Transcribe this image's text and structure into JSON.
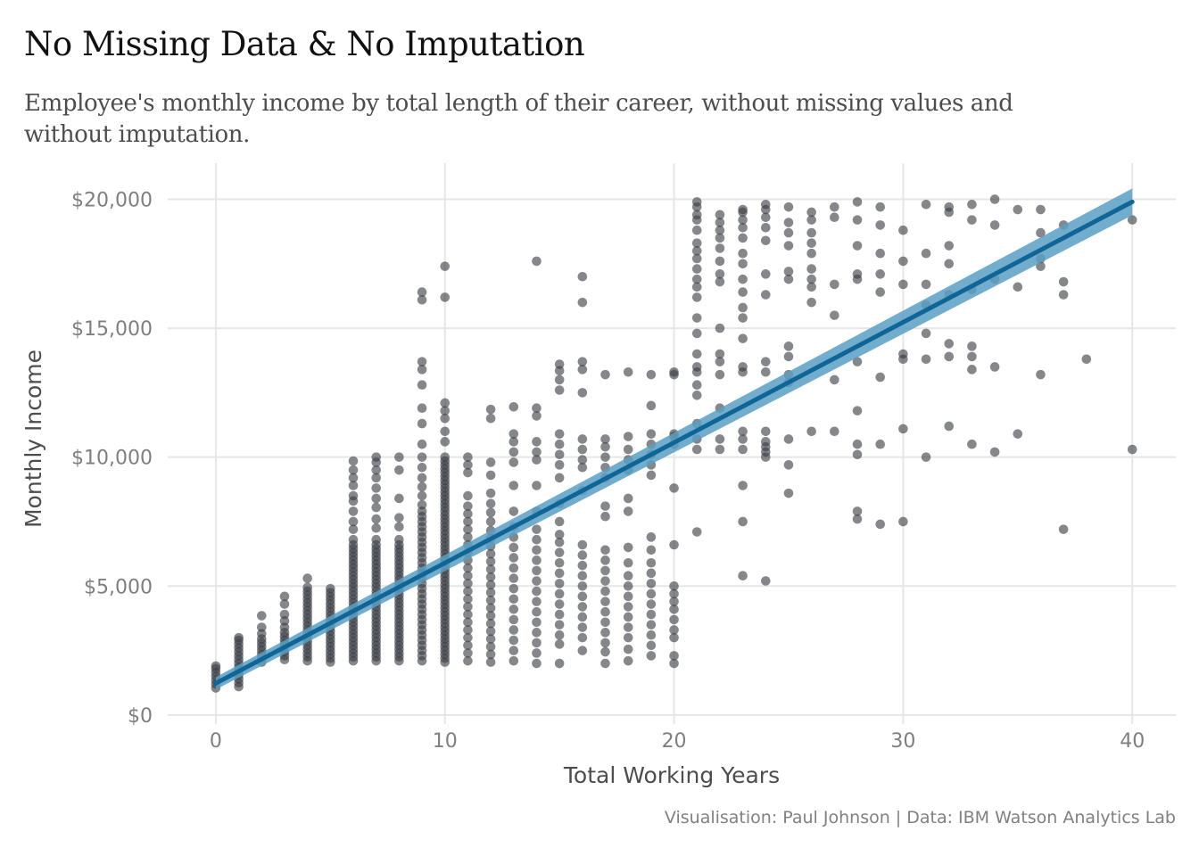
{
  "title": "No Missing Data & No Imputation",
  "subtitle": "Employee's monthly income by total length of their career, without missing values and without imputation.",
  "caption": "Visualisation: Paul Johnson  |  Data: IBM Watson Analytics Lab",
  "colors": {
    "points": "#3a3e43",
    "fit_line": "#0f6696",
    "ci_band": "#5b9fc4",
    "grid": "#e6e6e6"
  },
  "chart_data": {
    "type": "scatter",
    "xlabel": "Total Working Years",
    "ylabel": "Monthly Income",
    "xlim": [
      -2.1,
      41.9
    ],
    "ylim": [
      -350,
      21400
    ],
    "x_ticks": [
      0,
      10,
      20,
      30,
      40
    ],
    "x_tick_labels": [
      "0",
      "10",
      "20",
      "30",
      "40"
    ],
    "y_ticks": [
      0,
      5000,
      10000,
      15000,
      20000
    ],
    "y_tick_labels": [
      "$0",
      "$5,000",
      "$10,000",
      "$15,000",
      "$20,000"
    ],
    "grid": true,
    "legend": "none",
    "trend_line": {
      "method": "linear",
      "x": [
        0,
        40
      ],
      "y": [
        1230,
        19900
      ],
      "ci_halfwidth": [
        240,
        520
      ]
    },
    "point_columns": [
      {
        "x": 0,
        "y": [
          1050,
          1200,
          1350,
          1500,
          1650,
          1800,
          1900
        ]
      },
      {
        "x": 1,
        "y": [
          1100,
          1250,
          1400,
          1550,
          1700,
          1850,
          2000,
          2150,
          2300,
          2450,
          2600,
          2750,
          2900,
          3000
        ]
      },
      {
        "x": 2,
        "y": [
          2050,
          2200,
          2350,
          2500,
          2650,
          2800,
          2950,
          3150,
          3400,
          3850
        ]
      },
      {
        "x": 3,
        "y": [
          2150,
          2300,
          2450,
          2600,
          2750,
          2900,
          3050,
          3200,
          3400,
          3650,
          3900,
          4300,
          4600
        ]
      },
      {
        "x": 4,
        "y": [
          2100,
          2250,
          2400,
          2550,
          2700,
          2850,
          3000,
          3150,
          3300,
          3450,
          3600,
          3750,
          3900,
          4050,
          4200,
          4350,
          4500,
          4650,
          4800,
          4950,
          5300
        ]
      },
      {
        "x": 5,
        "y": [
          2050,
          2200,
          2350,
          2500,
          2650,
          2800,
          2950,
          3100,
          3250,
          3400,
          3550,
          3700,
          3850,
          4000,
          4150,
          4300,
          4450,
          4600,
          4750,
          4900
        ]
      },
      {
        "x": 6,
        "y": [
          2100,
          2250,
          2400,
          2550,
          2700,
          2850,
          3000,
          3150,
          3300,
          3450,
          3600,
          3750,
          3900,
          4050,
          4200,
          4350,
          4500,
          4650,
          4800,
          4950,
          5100,
          5250,
          5400,
          5550,
          5700,
          5850,
          6000,
          6150,
          6300,
          6450,
          6600,
          6800,
          7200,
          7500,
          7900,
          8300,
          8500,
          8900,
          9200,
          9500,
          9850
        ]
      },
      {
        "x": 7,
        "y": [
          2100,
          2250,
          2400,
          2550,
          2700,
          2850,
          3000,
          3150,
          3300,
          3450,
          3600,
          3750,
          3900,
          4050,
          4200,
          4350,
          4500,
          4650,
          4800,
          4950,
          5100,
          5250,
          5400,
          5550,
          5700,
          5850,
          6000,
          6150,
          6300,
          6450,
          6600,
          6800,
          7250,
          7600,
          8050,
          8400,
          8800,
          9200,
          9500,
          9800,
          10000
        ]
      },
      {
        "x": 8,
        "y": [
          2100,
          2250,
          2400,
          2550,
          2700,
          2850,
          3000,
          3150,
          3300,
          3450,
          3600,
          3750,
          3900,
          4050,
          4200,
          4350,
          4500,
          4650,
          4800,
          4950,
          5100,
          5250,
          5400,
          5550,
          5700,
          5850,
          6000,
          6150,
          6300,
          6450,
          6600,
          6800,
          7300,
          7650,
          8400,
          9500,
          10000
        ]
      },
      {
        "x": 9,
        "y": [
          2100,
          2300,
          2500,
          2700,
          2900,
          3100,
          3300,
          3500,
          3700,
          3900,
          4100,
          4300,
          4500,
          4700,
          4900,
          5100,
          5300,
          5500,
          5700,
          5900,
          6100,
          6300,
          6500,
          6700,
          6900,
          7100,
          7300,
          7500,
          7700,
          7900,
          8150,
          8500,
          8850,
          9200,
          9600,
          10000,
          10500,
          11300,
          11900,
          12800,
          13400,
          13700,
          16100,
          16400
        ]
      },
      {
        "x": 10,
        "y": [
          2050,
          2200,
          2350,
          2500,
          2650,
          2800,
          2950,
          3100,
          3250,
          3400,
          3550,
          3700,
          3850,
          4000,
          4150,
          4300,
          4450,
          4600,
          4750,
          4900,
          5050,
          5200,
          5350,
          5500,
          5650,
          5800,
          5950,
          6100,
          6250,
          6400,
          6550,
          6700,
          6850,
          7000,
          7150,
          7300,
          7450,
          7600,
          7750,
          7900,
          8050,
          8200,
          8350,
          8500,
          8650,
          8800,
          8950,
          9100,
          9250,
          9400,
          9550,
          9700,
          9850,
          10000,
          10600,
          11000,
          11500,
          11800,
          12100,
          16200,
          17400
        ]
      },
      {
        "x": 11,
        "y": [
          2100,
          2400,
          2700,
          3000,
          3300,
          3600,
          3900,
          4200,
          4500,
          4800,
          5100,
          5400,
          5700,
          6000,
          6300,
          6600,
          6900,
          7200,
          7500,
          7800,
          8100,
          8500,
          9400,
          9700,
          10000
        ]
      },
      {
        "x": 12,
        "y": [
          2050,
          2350,
          2650,
          2950,
          3250,
          3550,
          3850,
          4150,
          4450,
          4750,
          5050,
          5350,
          5650,
          5950,
          6250,
          6550,
          6850,
          7150,
          7500,
          7850,
          8200,
          8600,
          9300,
          9800,
          11500,
          11850
        ]
      },
      {
        "x": 13,
        "y": [
          2100,
          2500,
          2900,
          3300,
          3700,
          4100,
          4500,
          4900,
          5300,
          5700,
          6100,
          6500,
          6900,
          7300,
          7900,
          8900,
          9800,
          10200,
          10600,
          10900,
          11950
        ]
      },
      {
        "x": 14,
        "y": [
          2000,
          2400,
          2800,
          3200,
          3600,
          4000,
          4400,
          4800,
          5200,
          5600,
          6000,
          6400,
          6800,
          7200,
          7900,
          8900,
          9900,
          10200,
          10600,
          11600,
          11900,
          17600
        ]
      },
      {
        "x": 15,
        "y": [
          2000,
          2750,
          3100,
          3500,
          3900,
          4300,
          4700,
          5100,
          5500,
          5900,
          6300,
          6700,
          7000,
          7500,
          8200,
          9200,
          9700,
          10100,
          10500,
          10900,
          12600,
          13000,
          13600,
          13350
        ]
      },
      {
        "x": 16,
        "y": [
          2500,
          3000,
          3400,
          3800,
          4200,
          4600,
          5000,
          5400,
          5800,
          6200,
          6600,
          8700,
          9600,
          9900,
          10300,
          10700,
          12500,
          13400,
          13700,
          16000,
          17000
        ]
      },
      {
        "x": 17,
        "y": [
          2000,
          2450,
          2800,
          3200,
          3600,
          4000,
          4400,
          4800,
          5200,
          5600,
          6000,
          6400,
          7700,
          8100,
          9200,
          9600,
          10000,
          10400,
          10700,
          13200
        ]
      },
      {
        "x": 18,
        "y": [
          2100,
          2550,
          3000,
          3400,
          3800,
          4200,
          4600,
          5000,
          5400,
          5900,
          6500,
          7900,
          8400,
          9500,
          9900,
          10300,
          10800,
          13300
        ]
      },
      {
        "x": 19,
        "y": [
          2300,
          2700,
          3100,
          3500,
          3900,
          4300,
          4700,
          5100,
          5500,
          5900,
          6400,
          6900,
          9300,
          9700,
          10100,
          10500,
          10900,
          12000,
          13200
        ]
      },
      {
        "x": 20,
        "y": [
          2000,
          2300,
          3000,
          3300,
          3700,
          4100,
          4400,
          4700,
          5000,
          6600,
          8800,
          10500,
          10800,
          10900,
          13200,
          13300
        ]
      },
      {
        "x": 21,
        "y": [
          7100,
          10300,
          10700,
          11300,
          12400,
          12800,
          13300,
          13500,
          14000,
          14800,
          15400,
          16200,
          16600,
          16900,
          17300,
          17700,
          18000,
          18300,
          18800,
          19200,
          19400,
          19700,
          19900
        ]
      },
      {
        "x": 22,
        "y": [
          10300,
          10700,
          11900,
          13200,
          13700,
          14000,
          15000,
          16800,
          17100,
          17600,
          18100,
          18500,
          18800,
          19100,
          19400
        ]
      },
      {
        "x": 23,
        "y": [
          5400,
          7500,
          8900,
          10300,
          10700,
          11000,
          13300,
          13500,
          14600,
          15400,
          15800,
          16400,
          16900,
          17500,
          17900,
          18500,
          18900,
          19200,
          19500,
          19600
        ]
      },
      {
        "x": 24,
        "y": [
          5200,
          10000,
          10200,
          10400,
          10600,
          11000,
          13300,
          13700,
          16300,
          17100,
          18400,
          18900,
          19300,
          19600,
          19800
        ]
      },
      {
        "x": 25,
        "y": [
          8600,
          9700,
          10700,
          12900,
          13200,
          13900,
          14300,
          16900,
          17200,
          18200,
          18700,
          19100,
          19700
        ]
      },
      {
        "x": 26,
        "y": [
          11000,
          16000,
          16600,
          16900,
          17300,
          17900,
          18300,
          18700,
          19200,
          19500
        ]
      },
      {
        "x": 27,
        "y": [
          11000,
          13000,
          15500,
          16700,
          19300,
          19700
        ]
      },
      {
        "x": 28,
        "y": [
          7600,
          7900,
          10100,
          10500,
          11800,
          13700,
          16900,
          17100,
          18200,
          19200,
          19900
        ]
      },
      {
        "x": 29,
        "y": [
          7400,
          10500,
          13100,
          16400,
          17100,
          17900,
          19000,
          19700
        ]
      },
      {
        "x": 30,
        "y": [
          7500,
          11100,
          13800,
          14000,
          16700,
          17600,
          18800
        ]
      },
      {
        "x": 31,
        "y": [
          10000,
          13800,
          14800,
          15900,
          16700,
          17900,
          19800
        ]
      },
      {
        "x": 32,
        "y": [
          11200,
          13900,
          14400,
          16300,
          17500,
          18200,
          19500,
          19700
        ]
      },
      {
        "x": 33,
        "y": [
          10500,
          13400,
          13900,
          14300,
          16500,
          19200,
          19800
        ]
      },
      {
        "x": 34,
        "y": [
          10200,
          13500,
          16900,
          19000,
          20000
        ]
      },
      {
        "x": 35,
        "y": [
          10900,
          16600,
          19600
        ]
      },
      {
        "x": 36,
        "y": [
          13200,
          17400,
          17700,
          18700,
          19600
        ]
      },
      {
        "x": 37,
        "y": [
          7200,
          16300,
          16800,
          19000
        ]
      },
      {
        "x": 38,
        "y": [
          13800
        ]
      },
      {
        "x": 40,
        "y": [
          10300,
          19200
        ]
      }
    ]
  }
}
